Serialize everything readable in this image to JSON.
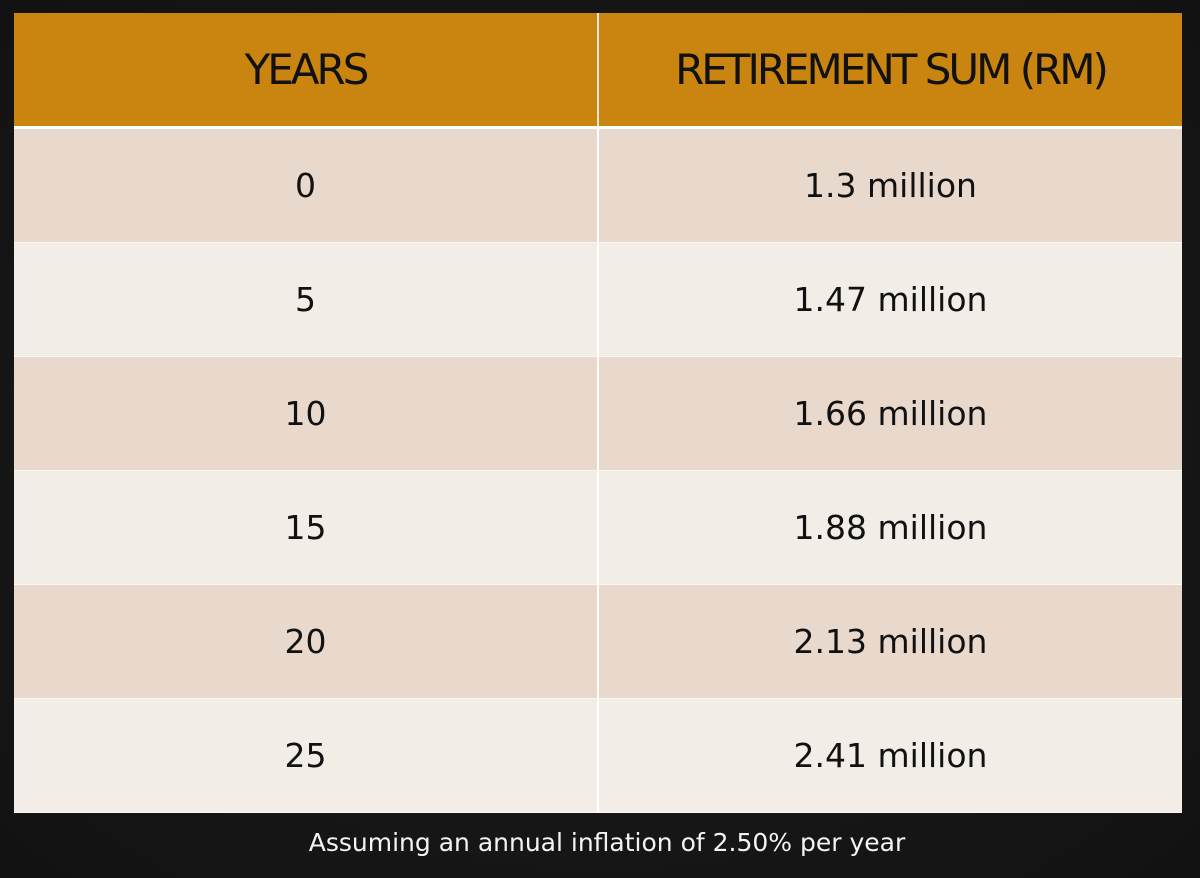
{
  "chart_data": {
    "type": "table",
    "columns": [
      "YEARS",
      "RETIREMENT SUM (RM)"
    ],
    "rows": [
      [
        "0",
        "1.3 million"
      ],
      [
        "5",
        "1.47 million"
      ],
      [
        "10",
        "1.66 million"
      ],
      [
        "15",
        "1.88 million"
      ],
      [
        "20",
        "2.13 million"
      ],
      [
        "25",
        "2.41 million"
      ]
    ],
    "x": [
      0,
      5,
      10,
      15,
      20,
      25
    ],
    "values": [
      1.3,
      1.47,
      1.66,
      1.88,
      2.13,
      2.41
    ],
    "annotation": "Assuming an annual inflation of 2.50% per year"
  },
  "colors": {
    "header_bg": "#c9850f",
    "row_dark": "#e9d9cd",
    "row_light": "#f3ede8",
    "background": "#161616"
  }
}
